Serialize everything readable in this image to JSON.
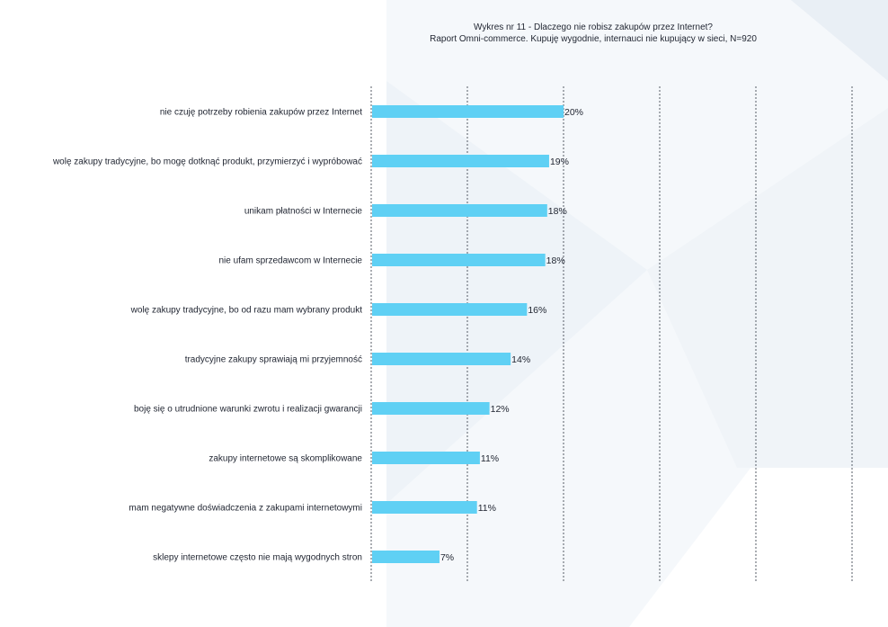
{
  "colors": {
    "bar": "#5fd0f4",
    "grid": "#555b66",
    "background_accent": "#eef3f8"
  },
  "chart_data": {
    "type": "bar",
    "orientation": "horizontal",
    "title": "Wykres nr 11 - Dlaczego nie robisz zakupów przez Internet?",
    "subtitle": "Raport Omni-commerce. Kupuję wygodnie, internauci nie kupujący w sieci, N=920",
    "xlim": [
      0,
      50
    ],
    "gridlines": [
      0,
      10,
      20,
      30,
      40,
      50
    ],
    "grid_style": "dashed-vertical",
    "categories": [
      "nie czuję potrzeby robienia zakupów przez Internet",
      "wolę zakupy tradycyjne, bo mogę dotknąć produkt, przymierzyć i wypróbować",
      "unikam płatności w Internecie",
      "nie ufam sprzedawcom w Internecie",
      "wolę zakupy tradycyjne, bo od razu mam wybrany produkt",
      "tradycyjne zakupy sprawiają mi przyjemność",
      "boję się o utrudnione warunki zwrotu i realizacji gwarancji",
      "zakupy internetowe są skomplikowane",
      "mam negatywne doświadczenia z zakupami internetowymi",
      "sklepy internetowe często nie mają wygodnych stron"
    ],
    "values": [
      20,
      18.5,
      18.3,
      18.1,
      16.2,
      14.5,
      12.3,
      11.3,
      11,
      7.1
    ],
    "value_labels": [
      "20%",
      "19%",
      "18%",
      "18%",
      "16%",
      "14%",
      "12%",
      "11%",
      "11%",
      "7%"
    ]
  }
}
